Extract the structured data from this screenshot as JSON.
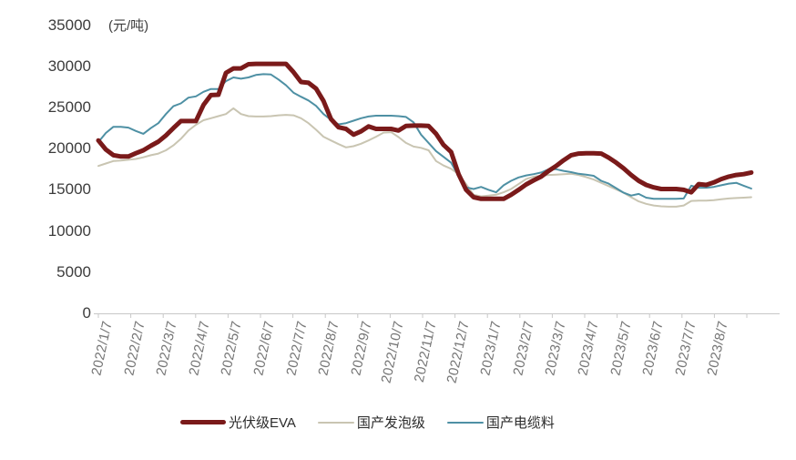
{
  "chart_data": {
    "type": "line",
    "unit_label": "(元/吨)",
    "grid": "off",
    "legend_position": "bottom-center",
    "y_axis": {
      "min": 0,
      "max": 35000,
      "step": 5000,
      "tick_labels": [
        "0",
        "5000",
        "10000",
        "15000",
        "20000",
        "25000",
        "30000",
        "35000"
      ]
    },
    "x_axis": {
      "sampling": "weekly",
      "first_point": "2022/1/7",
      "tick_labels": [
        "2022/1/7",
        "2022/2/7",
        "2022/3/7",
        "2022/4/7",
        "2022/5/7",
        "2022/6/7",
        "2022/7/7",
        "2022/8/7",
        "2022/9/7",
        "2022/10/7",
        "2022/11/7",
        "2022/12/7",
        "2023/1/7",
        "2023/2/7",
        "2023/3/7",
        "2023/4/7",
        "2023/5/7",
        "2023/6/7",
        "2023/7/7",
        "2023/8/7"
      ]
    },
    "colors": {
      "axis_line": "#c8c8c8",
      "y_tick_text": "#3c3c3c",
      "x_tick_text": "#757575",
      "legend_text": "#2b2b2b"
    },
    "series": [
      {
        "id": "pv-grade-eva",
        "name": "光伏级EVA",
        "color": "#7a1a1a",
        "stroke_width": 5,
        "values": [
          21000,
          19900,
          19200,
          19050,
          19050,
          19450,
          19800,
          20350,
          20850,
          21600,
          22500,
          23350,
          23350,
          23350,
          25300,
          26500,
          26550,
          29200,
          29750,
          29750,
          30250,
          30300,
          30300,
          30300,
          30300,
          30300,
          29300,
          28100,
          28000,
          27300,
          25800,
          23600,
          22600,
          22400,
          21700,
          22100,
          22700,
          22400,
          22400,
          22400,
          22200,
          22750,
          22800,
          22800,
          22750,
          21800,
          20450,
          19600,
          16900,
          15000,
          14100,
          13900,
          13900,
          13900,
          13900,
          14400,
          15000,
          15650,
          16150,
          16600,
          17300,
          17900,
          18600,
          19200,
          19400,
          19450,
          19450,
          19400,
          18900,
          18300,
          17600,
          16800,
          16100,
          15600,
          15300,
          15100,
          15100,
          15100,
          15000,
          14700,
          15700,
          15600,
          15900,
          16300,
          16600,
          16800,
          16900,
          17100
        ]
      },
      {
        "id": "domestic-foaming-grade",
        "name": "国产发泡级",
        "color": "#c9c5b2",
        "stroke_width": 2,
        "values": [
          17900,
          18200,
          18500,
          18550,
          18650,
          18750,
          18950,
          19200,
          19400,
          19800,
          20400,
          21200,
          22200,
          22900,
          23450,
          23700,
          23950,
          24200,
          24900,
          24200,
          23950,
          23900,
          23900,
          23950,
          24050,
          24100,
          24050,
          23700,
          23100,
          22300,
          21450,
          21000,
          20550,
          20150,
          20300,
          20600,
          21000,
          21450,
          21950,
          22000,
          21400,
          20700,
          20250,
          20100,
          19800,
          18500,
          17950,
          17550,
          16900,
          15700,
          14400,
          14200,
          14300,
          14400,
          14700,
          15100,
          15700,
          16300,
          16600,
          16700,
          16800,
          16850,
          16900,
          16950,
          16800,
          16550,
          16250,
          15850,
          15450,
          15050,
          14650,
          14100,
          13600,
          13300,
          13100,
          13000,
          12950,
          12950,
          13100,
          13650,
          13700,
          13700,
          13750,
          13850,
          13950,
          14000,
          14050,
          14100
        ]
      },
      {
        "id": "domestic-cable-material",
        "name": "国产电缆料",
        "color": "#4e90a4",
        "stroke_width": 2,
        "values": [
          20800,
          21900,
          22650,
          22650,
          22550,
          22150,
          21800,
          22500,
          23100,
          24200,
          25150,
          25500,
          26200,
          26350,
          26900,
          27250,
          27250,
          28200,
          28650,
          28500,
          28650,
          28950,
          29050,
          29000,
          28400,
          27700,
          26800,
          26300,
          25850,
          25200,
          24200,
          23500,
          22950,
          23100,
          23400,
          23700,
          23900,
          24000,
          24000,
          24000,
          23950,
          23850,
          23200,
          21700,
          20700,
          19700,
          19000,
          18300,
          16700,
          15300,
          15100,
          15350,
          15000,
          14700,
          15550,
          16100,
          16500,
          16750,
          16900,
          17100,
          17500,
          17500,
          17300,
          17150,
          16950,
          16850,
          16700,
          16100,
          15750,
          15200,
          14650,
          14300,
          14500,
          14050,
          13900,
          13900,
          13900,
          13900,
          13950,
          15500,
          15250,
          15250,
          15350,
          15550,
          15750,
          15850,
          15500,
          15150
        ]
      }
    ]
  }
}
